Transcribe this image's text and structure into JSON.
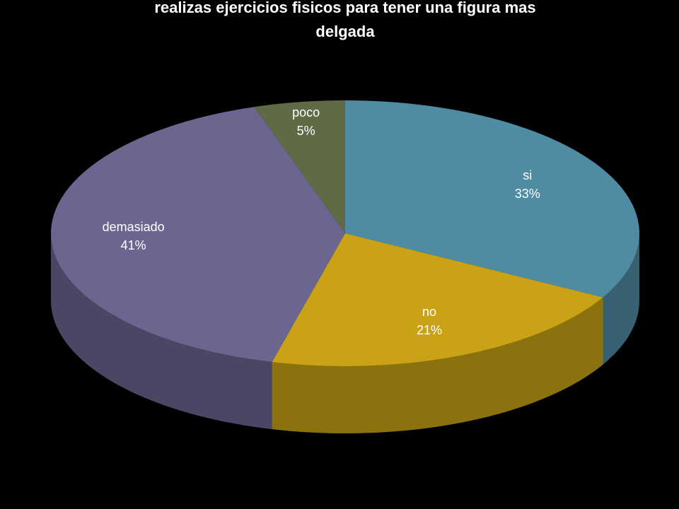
{
  "chart_data": {
    "type": "pie3d",
    "title": "realizas ejercicios fisicos para tener una figura mas delgada",
    "categories": [
      "si",
      "no",
      "demasiado",
      "poco"
    ],
    "values": [
      33,
      21,
      41,
      5
    ],
    "value_labels": [
      "33%",
      "21%",
      "41%",
      "5%"
    ],
    "colors": [
      "#4f8ca3",
      "#c9a216",
      "#6b6690",
      "#5f6b47"
    ]
  }
}
